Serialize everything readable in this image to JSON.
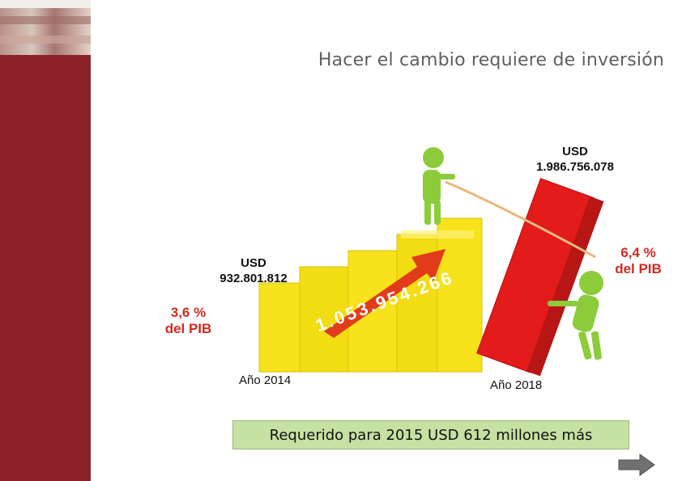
{
  "slide": {
    "title": "Hacer el cambio requiere de inversión",
    "left_value": {
      "usd": "USD",
      "amount": "932.801.812"
    },
    "right_value": {
      "usd": "USD",
      "amount": "1.986.756.078"
    },
    "left_pib": {
      "pct": "3,6 %",
      "label": "del PIB"
    },
    "right_pib": {
      "pct": "6,4 %",
      "label": "del PIB"
    },
    "arrow_amount": "1.053.954.266",
    "year_left": "Año 2014",
    "year_right": "Año 2018",
    "banner": "Requerido para 2015 USD 612 millones más"
  },
  "icons": {
    "next": "arrow-right-icon"
  },
  "colors": {
    "sidebar": "#8a2027",
    "bar_yellow": "#f7e21b",
    "bar_red": "#e31b1b",
    "arrow_red": "#e23b1c",
    "banner": "#c6e1a2",
    "figure_green": "#8ccc3a"
  }
}
